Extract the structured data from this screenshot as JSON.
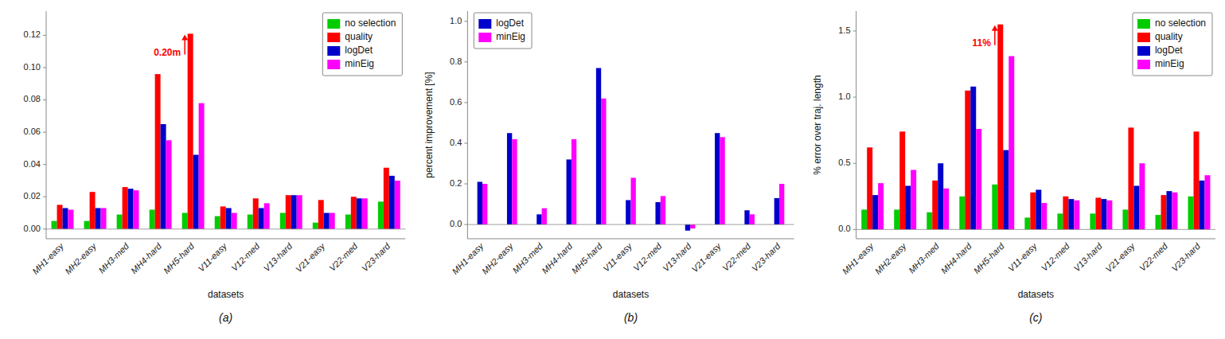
{
  "chart_data": [
    {
      "type": "bar",
      "xlabel": "datasets",
      "caption": "(a)",
      "categories": [
        "MH1-easy",
        "MH2-easy",
        "MH3-med",
        "MH4-hard",
        "MH5-hard",
        "V11-easy",
        "V12-med",
        "V13-hard",
        "V21-easy",
        "V22-med",
        "V23-hard"
      ],
      "series": [
        {
          "name": "no selection",
          "color": "#00cc00",
          "values": [
            0.005,
            0.005,
            0.009,
            0.012,
            0.01,
            0.008,
            0.009,
            0.01,
            0.004,
            0.009,
            0.017
          ]
        },
        {
          "name": "quality",
          "color": "#ff0000",
          "values": [
            0.015,
            0.023,
            0.026,
            0.096,
            0.121,
            0.014,
            0.019,
            0.021,
            0.018,
            0.02,
            0.038
          ]
        },
        {
          "name": "logDet",
          "color": "#0000cc",
          "values": [
            0.013,
            0.013,
            0.025,
            0.065,
            0.046,
            0.013,
            0.013,
            0.021,
            0.01,
            0.019,
            0.033
          ]
        },
        {
          "name": "minEig",
          "color": "#ff00ff",
          "values": [
            0.012,
            0.013,
            0.024,
            0.055,
            0.078,
            0.01,
            0.016,
            0.021,
            0.01,
            0.019,
            0.03
          ]
        }
      ],
      "ylim": [
        -0.006,
        0.135
      ],
      "yticks": [
        {
          "value": 0,
          "label": "0.00"
        },
        0.02,
        0.04,
        0.06,
        0.08,
        {
          "value": 0.1,
          "label": "0.10"
        },
        0.12
      ],
      "annotations": [
        {
          "text": "0.20m",
          "category": "MH5-hard",
          "series": "quality"
        }
      ],
      "legend": "upper right",
      "grid": false
    },
    {
      "type": "bar",
      "xlabel": "datasets",
      "ylabel": "percent improvement [%]",
      "caption": "(b)",
      "categories": [
        "MH1-easy",
        "MH2-easy",
        "MH3-med",
        "MH4-hard",
        "MH5-hard",
        "V11-easy",
        "V12-med",
        "V13-hard",
        "V21-easy",
        "V22-med",
        "V23-hard"
      ],
      "series": [
        {
          "name": "logDet",
          "color": "#0000cc",
          "values": [
            0.21,
            0.45,
            0.05,
            0.32,
            0.77,
            0.12,
            0.11,
            -0.03,
            0.45,
            0.07,
            0.13
          ]
        },
        {
          "name": "minEig",
          "color": "#ff00ff",
          "values": [
            0.2,
            0.42,
            0.08,
            0.42,
            0.62,
            0.23,
            0.14,
            -0.02,
            0.43,
            0.05,
            0.2
          ]
        }
      ],
      "ylim": [
        -0.07,
        1.05
      ],
      "yticks": [
        {
          "value": 0,
          "label": "0.0"
        },
        0.2,
        0.4,
        0.6,
        0.8,
        {
          "value": 1,
          "label": "1.0"
        }
      ],
      "legend": "upper left",
      "grid": false
    },
    {
      "type": "bar",
      "xlabel": "datasets",
      "ylabel": "% error over traj. length",
      "caption": "(c)",
      "categories": [
        "MH1-easy",
        "MH2-easy",
        "MH3-med",
        "MH4-hard",
        "MH5-hard",
        "V11-easy",
        "V12-med",
        "V13-hard",
        "V21-easy",
        "V22-med",
        "V23-hard"
      ],
      "series": [
        {
          "name": "no selection",
          "color": "#00cc00",
          "values": [
            0.15,
            0.15,
            0.13,
            0.25,
            0.34,
            0.09,
            0.12,
            0.12,
            0.15,
            0.11,
            0.25
          ]
        },
        {
          "name": "quality",
          "color": "#ff0000",
          "values": [
            0.62,
            0.74,
            0.37,
            1.05,
            1.55,
            0.28,
            0.25,
            0.24,
            0.77,
            0.26,
            0.74
          ]
        },
        {
          "name": "logDet",
          "color": "#0000cc",
          "values": [
            0.26,
            0.33,
            0.5,
            1.08,
            0.6,
            0.3,
            0.23,
            0.23,
            0.33,
            0.29,
            0.37
          ]
        },
        {
          "name": "minEig",
          "color": "#ff00ff",
          "values": [
            0.35,
            0.45,
            0.31,
            0.76,
            1.31,
            0.2,
            0.22,
            0.22,
            0.5,
            0.28,
            0.41
          ]
        }
      ],
      "ylim": [
        -0.07,
        1.65
      ],
      "yticks": [
        {
          "value": 0,
          "label": "0.0"
        },
        0.5,
        {
          "value": 1,
          "label": "1.0"
        },
        1.5
      ],
      "annotations": [
        {
          "text": "11%",
          "category": "MH5-hard",
          "series": "quality"
        }
      ],
      "legend": "upper right",
      "grid": false
    }
  ]
}
